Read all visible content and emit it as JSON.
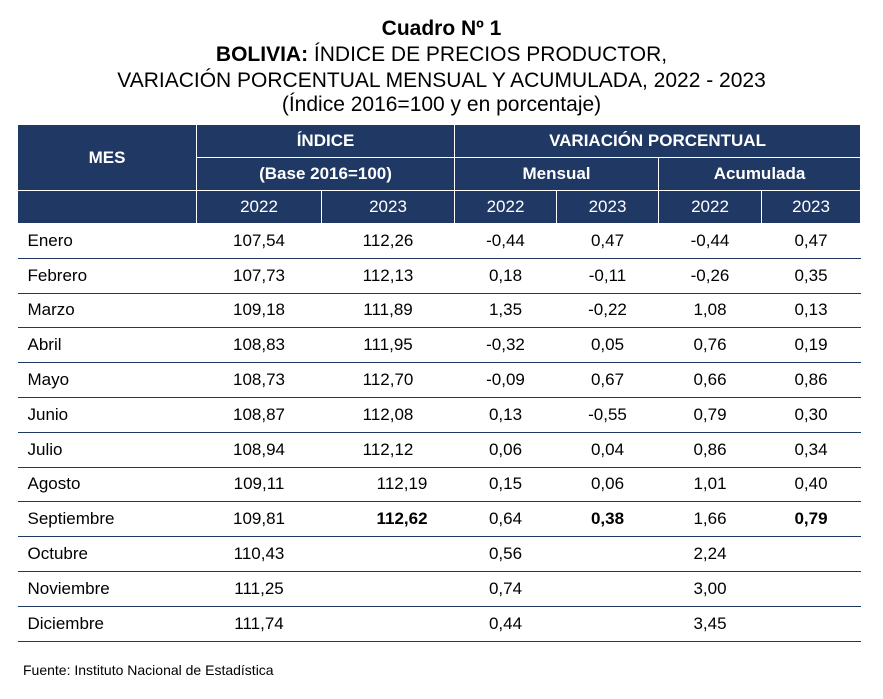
{
  "title": {
    "cuadro": "Cuadro Nº 1",
    "line2_bold": "BOLIVIA:",
    "line2_rest": " ÍNDICE DE PRECIOS PRODUCTOR,",
    "line3": "VARIACIÓN PORCENTUAL MENSUAL Y ACUMULADA, 2022 - 2023",
    "line4": "(Índice 2016=100 y en porcentaje)"
  },
  "header": {
    "mes": "MES",
    "indice": "ÍNDICE",
    "base": "(Base 2016=100)",
    "variacion": "VARIACIÓN PORCENTUAL",
    "mensual": "Mensual",
    "acumulada": "Acumulada",
    "years": [
      "2022",
      "2023",
      "2022",
      "2023",
      "2022",
      "2023"
    ]
  },
  "rows": [
    {
      "mes": "Enero",
      "i22": "107,54",
      "i23": "112,26",
      "m22": "-0,44",
      "m23": "0,47",
      "a22": "-0,44",
      "a23": "0,47"
    },
    {
      "mes": "Febrero",
      "i22": "107,73",
      "i23": "112,13",
      "m22": "0,18",
      "m23": "-0,11",
      "a22": "-0,26",
      "a23": "0,35"
    },
    {
      "mes": "Marzo",
      "i22": "109,18",
      "i23": "111,89",
      "m22": "1,35",
      "m23": "-0,22",
      "a22": "1,08",
      "a23": "0,13"
    },
    {
      "mes": "Abril",
      "i22": "108,83",
      "i23": "111,95",
      "m22": "-0,32",
      "m23": "0,05",
      "a22": "0,76",
      "a23": "0,19"
    },
    {
      "mes": "Mayo",
      "i22": "108,73",
      "i23": "112,70",
      "m22": "-0,09",
      "m23": "0,67",
      "a22": "0,66",
      "a23": "0,86"
    },
    {
      "mes": "Junio",
      "i22": "108,87",
      "i23": "112,08",
      "m22": "0,13",
      "m23": "-0,55",
      "a22": "0,79",
      "a23": "0,30"
    },
    {
      "mes": "Julio",
      "i22": "108,94",
      "i23": "112,12",
      "m22": "0,06",
      "m23": "0,04",
      "a22": "0,86",
      "a23": "0,34"
    },
    {
      "mes": "Agosto",
      "i22": "109,11",
      "i23": "112,19",
      "m22": "0,15",
      "m23": "0,06",
      "a22": "1,01",
      "a23": "0,40"
    },
    {
      "mes": "Septiembre",
      "i22": "109,81",
      "i23": "112,62",
      "m22": "0,64",
      "m23": "0,38",
      "a22": "1,66",
      "a23": "0,79"
    },
    {
      "mes": "Octubre",
      "i22": "110,43",
      "i23": "",
      "m22": "0,56",
      "m23": "",
      "a22": "2,24",
      "a23": ""
    },
    {
      "mes": "Noviembre",
      "i22": "111,25",
      "i23": "",
      "m22": "0,74",
      "m23": "",
      "a22": "3,00",
      "a23": ""
    },
    {
      "mes": "Diciembre",
      "i22": "111,74",
      "i23": "",
      "m22": "0,44",
      "m23": "",
      "a22": "3,45",
      "a23": ""
    }
  ],
  "source": "Fuente: Instituto Nacional de Estadística"
}
